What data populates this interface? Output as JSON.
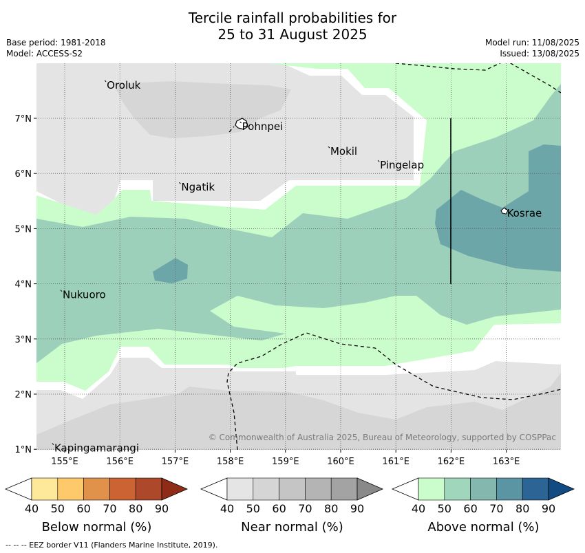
{
  "title_line1": "Tercile rainfall probabilities for",
  "title_line2": "25 to 31 August 2025",
  "base_period": "Base period: 1981-2018",
  "model": "Model: ACCESS-S2",
  "model_run": "Model run: 11/08/2025",
  "issued": "Issued: 13/08/2025",
  "copyright": "© Commonwealth of Australia 2025, Bureau of Meteorology, supported by COSPPac",
  "footer": "--  --  -- EEZ border V11 (Flanders Marine Institute, 2019).",
  "lon_labels": [
    "155°E",
    "156°E",
    "157°E",
    "158°E",
    "159°E",
    "160°E",
    "161°E",
    "162°E",
    "163°E"
  ],
  "lat_labels": [
    "7°N",
    "6°N",
    "5°N",
    "4°N",
    "3°N",
    "2°N",
    "1°N"
  ],
  "places": [
    {
      "name": "Oroluk",
      "lon": 155.75,
      "lat": 7.65
    },
    {
      "name": "Pohnpei",
      "lon": 158.2,
      "lat": 6.9
    },
    {
      "name": "Mokil",
      "lon": 159.8,
      "lat": 6.45
    },
    {
      "name": "Pingelap",
      "lon": 160.7,
      "lat": 6.2
    },
    {
      "name": "Ngatik",
      "lon": 157.1,
      "lat": 5.8
    },
    {
      "name": "Kosrae",
      "lon": 163.0,
      "lat": 5.33
    },
    {
      "name": "Nukuoro",
      "lon": 154.95,
      "lat": 3.85
    },
    {
      "name": "Kapingamarangi",
      "lon": 154.8,
      "lat": 1.07
    }
  ],
  "colorbars": [
    {
      "label": "Below normal (%)",
      "ticks": [
        "40",
        "50",
        "60",
        "70",
        "80",
        "90"
      ],
      "colors": [
        "#ffffff",
        "#fee99a",
        "#fdc96a",
        "#e0924a",
        "#cc6333",
        "#ae482a",
        "#8e2c18"
      ]
    },
    {
      "label": "Near normal (%)",
      "ticks": [
        "40",
        "50",
        "60",
        "70",
        "80",
        "90"
      ],
      "colors": [
        "#ffffff",
        "#e5e5e5",
        "#d5d5d5",
        "#c5c5c5",
        "#b4b4b4",
        "#a3a3a3",
        "#898989"
      ]
    },
    {
      "label": "Above normal (%)",
      "ticks": [
        "40",
        "50",
        "60",
        "70",
        "80",
        "90"
      ],
      "colors": [
        "#ffffff",
        "#cbfccb",
        "#a0d6bc",
        "#84b8ae",
        "#5b95a3",
        "#2c6496",
        "#124b82"
      ]
    }
  ],
  "colors": {
    "near40": "#e4e4e4",
    "near50": "#d6d6d6",
    "above40": "#cbfccb",
    "above50": "#9dd0ba",
    "above60": "#6da6a8"
  }
}
